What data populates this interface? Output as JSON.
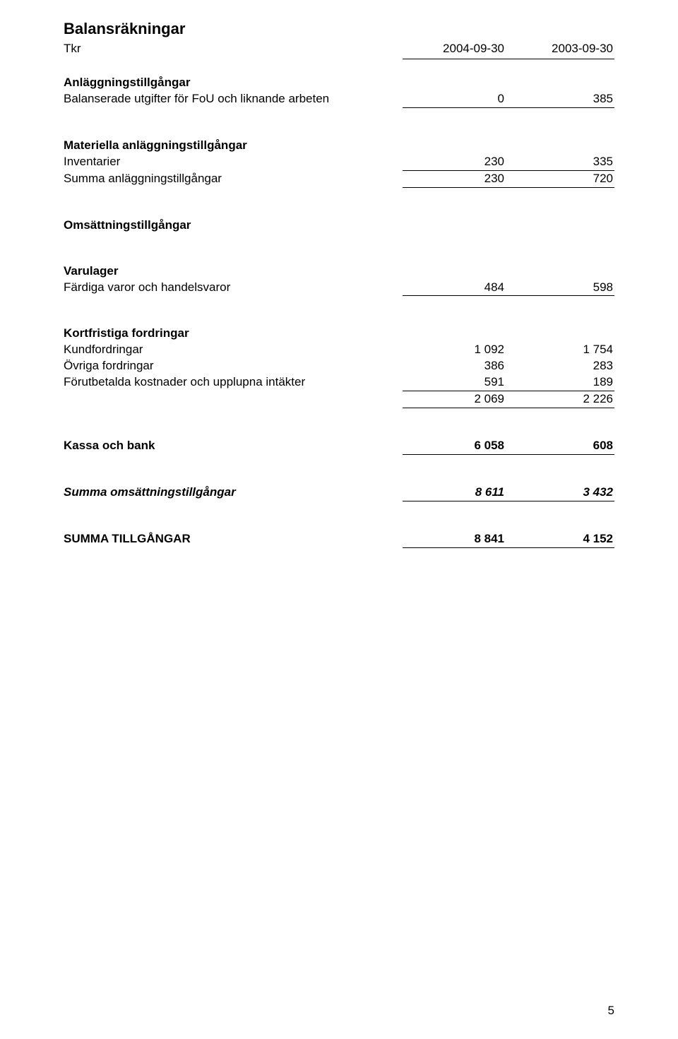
{
  "title": "Balansräkningar",
  "header": {
    "label": "Tkr",
    "col1": "2004-09-30",
    "col2": "2003-09-30"
  },
  "sections": {
    "fixed_assets_heading": "Anläggningstillgångar",
    "capitalized_rnd": {
      "label": "Balanserade utgifter för FoU och liknande arbeten",
      "c1": "0",
      "c2": "385"
    },
    "tangible_heading": "Materiella anläggningstillgångar",
    "inventories_equip": {
      "label": "Inventarier",
      "c1": "230",
      "c2": "335"
    },
    "sum_fixed": {
      "label": "Summa anläggningstillgångar",
      "c1": "230",
      "c2": "720"
    },
    "current_assets_heading": "Omsättningstillgångar",
    "stock_heading": "Varulager",
    "finished_goods": {
      "label": "Färdiga varor och handelsvaror",
      "c1": "484",
      "c2": "598"
    },
    "receivables_heading": "Kortfristiga fordringar",
    "accounts_receivable": {
      "label": "Kundfordringar",
      "c1": "1 092",
      "c2": "1 754"
    },
    "other_receivables": {
      "label": "Övriga fordringar",
      "c1": "386",
      "c2": "283"
    },
    "prepaid_accrued": {
      "label": "Förutbetalda kostnader och upplupna intäkter",
      "c1": "591",
      "c2": "189"
    },
    "receivables_sum": {
      "c1": "2 069",
      "c2": "2 226"
    },
    "cash": {
      "label": "Kassa och bank",
      "c1": "6 058",
      "c2": "608"
    },
    "sum_current": {
      "label": "Summa omsättningstillgångar",
      "c1": "8 611",
      "c2": "3 432"
    },
    "sum_assets": {
      "label": "SUMMA TILLGÅNGAR",
      "c1": "8 841",
      "c2": "4 152"
    }
  },
  "page_number": "5"
}
